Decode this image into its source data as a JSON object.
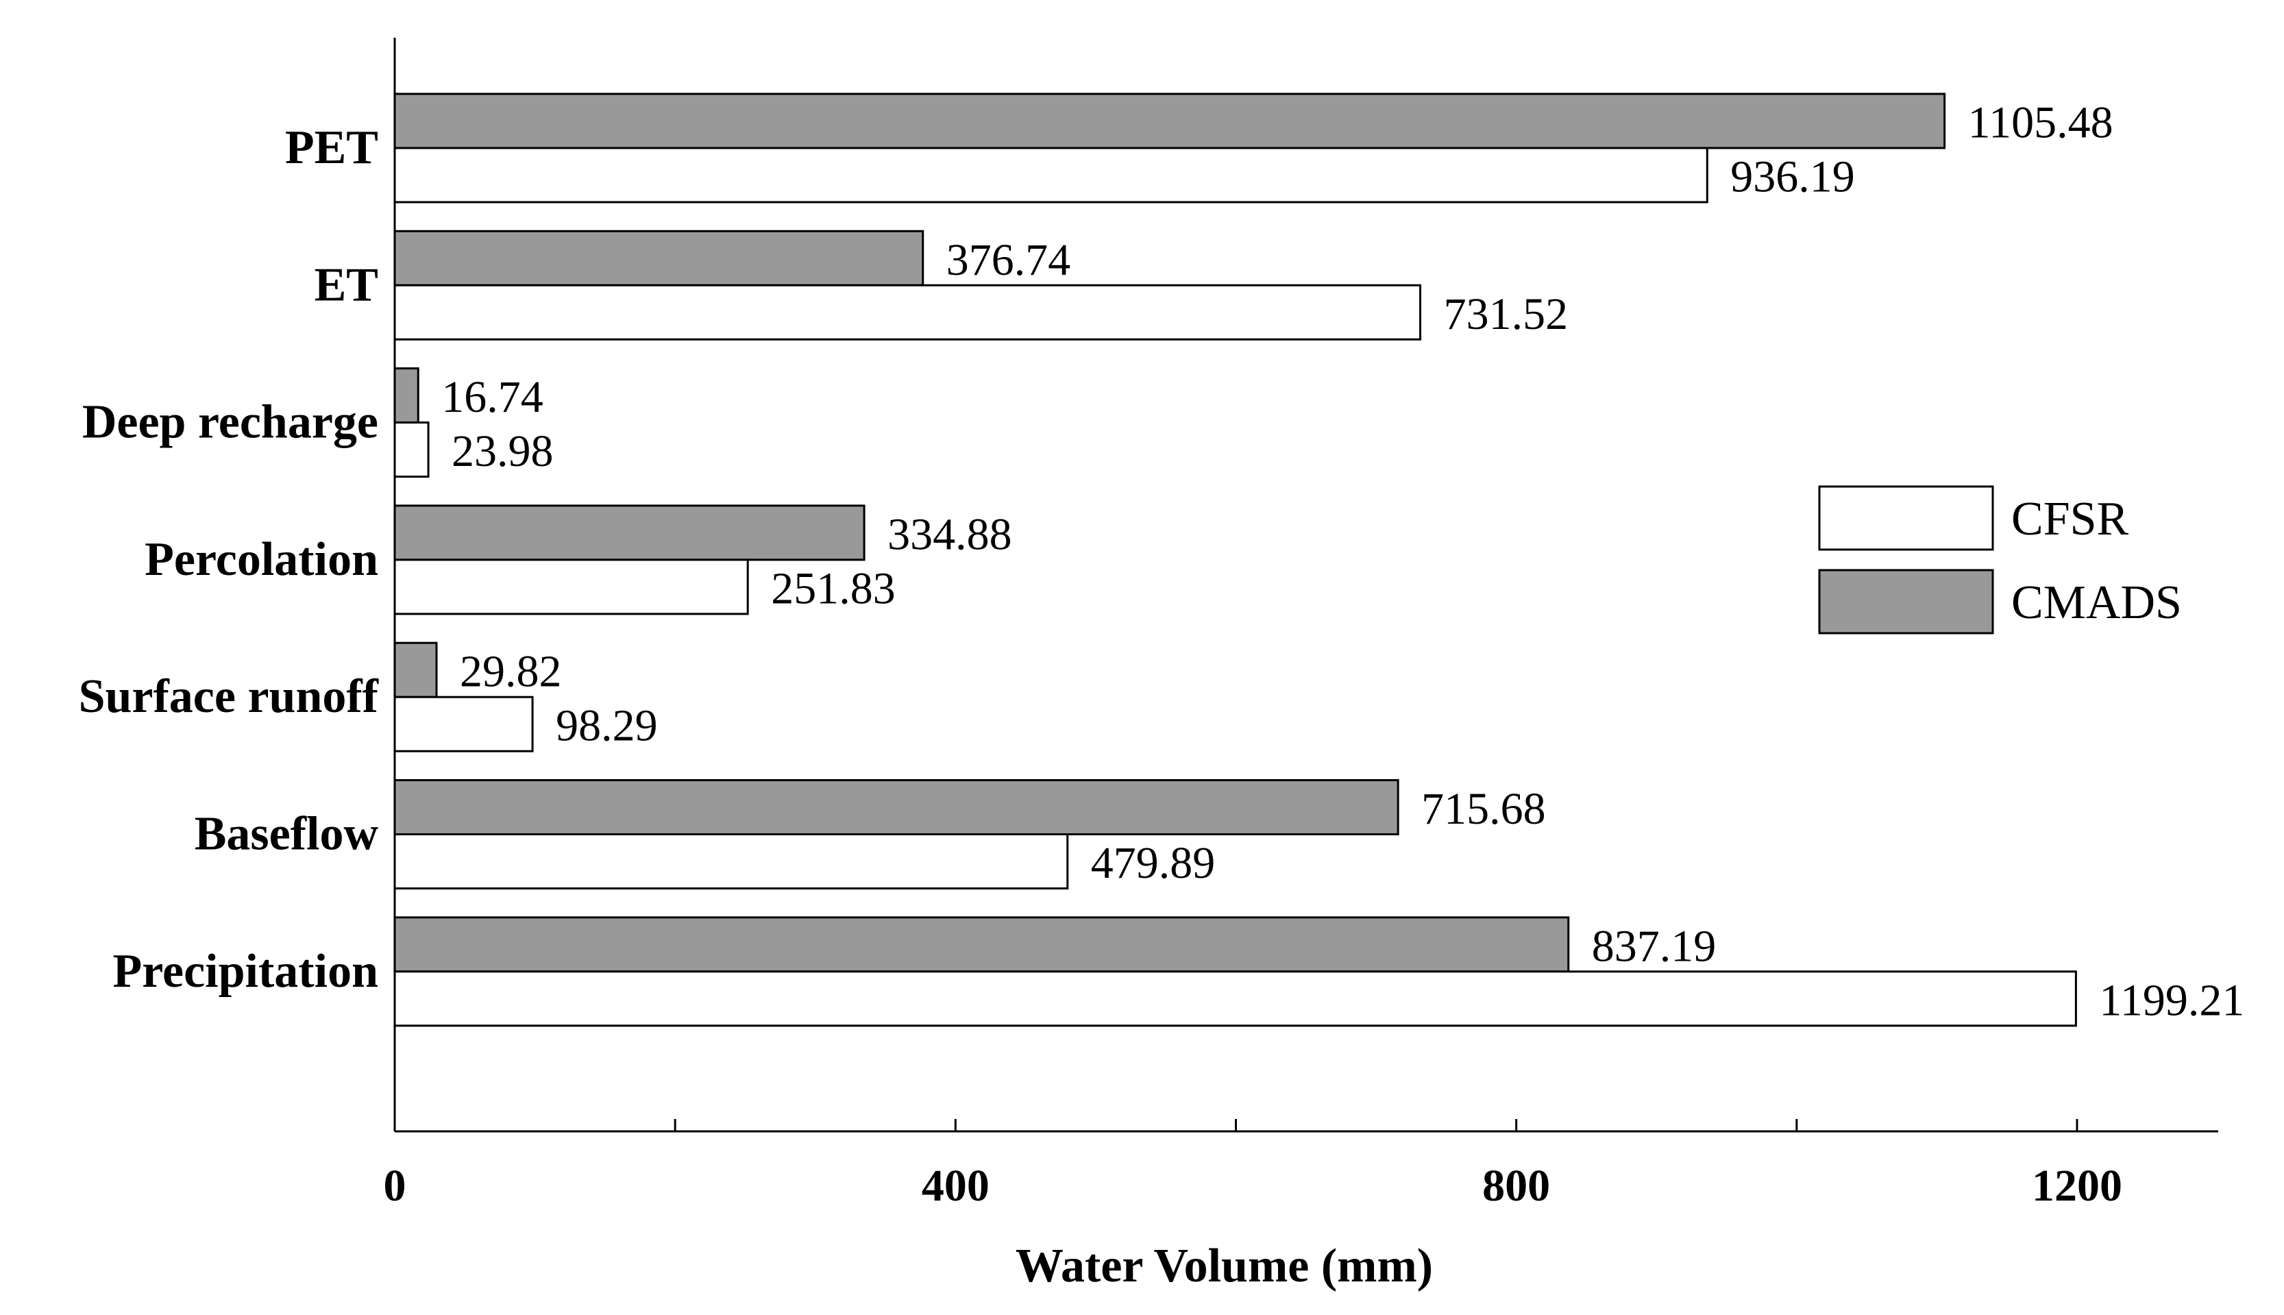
{
  "chart_data": {
    "type": "bar",
    "orientation": "horizontal",
    "categories": [
      "PET",
      "ET",
      "Deep recharge",
      "Percolation",
      "Surface runoff",
      "Baseflow",
      "Precipitation"
    ],
    "series": [
      {
        "name": "CMADS",
        "color": "#999999",
        "values": [
          1105.48,
          376.74,
          16.74,
          334.88,
          29.82,
          715.68,
          837.19
        ],
        "value_labels": [
          "1105.48",
          "376.74",
          "16.74",
          "334.88",
          "29.82",
          "715.68",
          "837.19"
        ]
      },
      {
        "name": "CFSR",
        "color": "#ffffff",
        "values": [
          936.19,
          731.52,
          23.98,
          251.83,
          98.29,
          479.89,
          1199.21
        ],
        "value_labels": [
          "936.19",
          "731.52",
          "23.98",
          "251.83",
          "98.29",
          "479.89",
          "1199.21"
        ]
      }
    ],
    "legend_order": [
      "CFSR",
      "CMADS"
    ],
    "xlabel": "Water Volume (mm)",
    "ylabel": "",
    "xlim": [
      0,
      1300
    ],
    "xticks": [
      0,
      200,
      400,
      600,
      800,
      1000,
      1200
    ],
    "xtick_labels": [
      "0",
      "",
      "400",
      "",
      "800",
      "",
      "1200"
    ],
    "grid": false,
    "legend_position": "right"
  }
}
